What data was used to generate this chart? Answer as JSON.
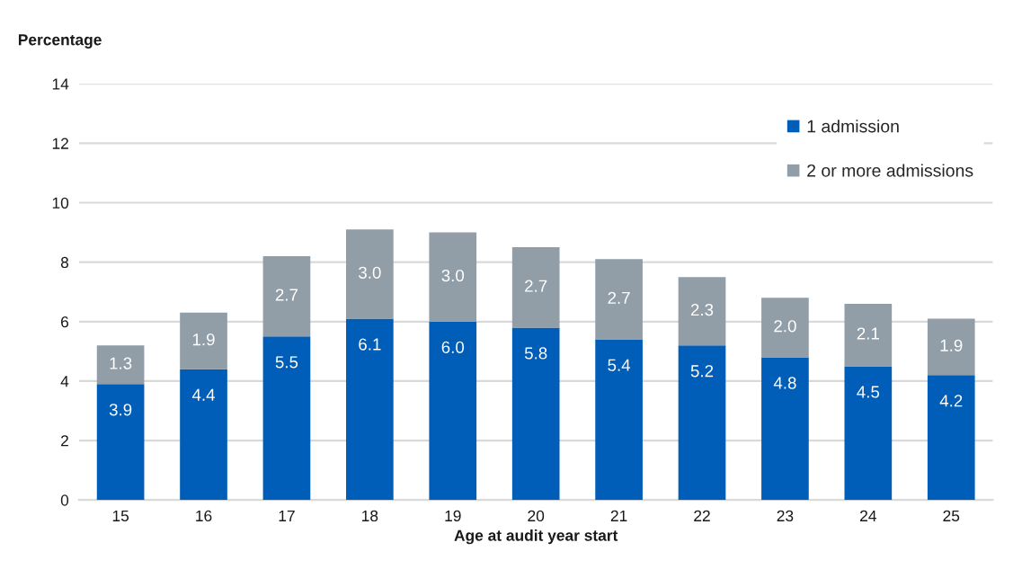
{
  "chart_data": {
    "type": "bar",
    "stacked": true,
    "xlabel": "Age at audit year start",
    "ylabel": "Percentage",
    "categories": [
      "15",
      "16",
      "17",
      "18",
      "19",
      "20",
      "21",
      "22",
      "23",
      "24",
      "25"
    ],
    "series": [
      {
        "name": "1 admission",
        "color": "#005eb8",
        "values": [
          3.9,
          4.4,
          5.5,
          6.1,
          6.0,
          5.8,
          5.4,
          5.2,
          4.8,
          4.5,
          4.2
        ],
        "value_labels": [
          "3.9",
          "4.4",
          "5.5",
          "6.1",
          "6.0",
          "5.8",
          "5.4",
          "5.2",
          "4.8",
          "4.5",
          "4.2"
        ]
      },
      {
        "name": "2 or more admissions",
        "color": "#919ea8",
        "values": [
          1.3,
          1.9,
          2.7,
          3.0,
          3.0,
          2.7,
          2.7,
          2.3,
          2.0,
          2.1,
          1.9
        ],
        "value_labels": [
          "1.3",
          "1.9",
          "2.7",
          "3.0",
          "3.0",
          "2.7",
          "2.7",
          "2.3",
          "2.0",
          "2.1",
          "1.9"
        ]
      }
    ],
    "ylim": [
      0,
      14
    ],
    "yticks": [
      0,
      2,
      4,
      6,
      8,
      10,
      12,
      14
    ],
    "grid": "y",
    "legend": "top right"
  }
}
